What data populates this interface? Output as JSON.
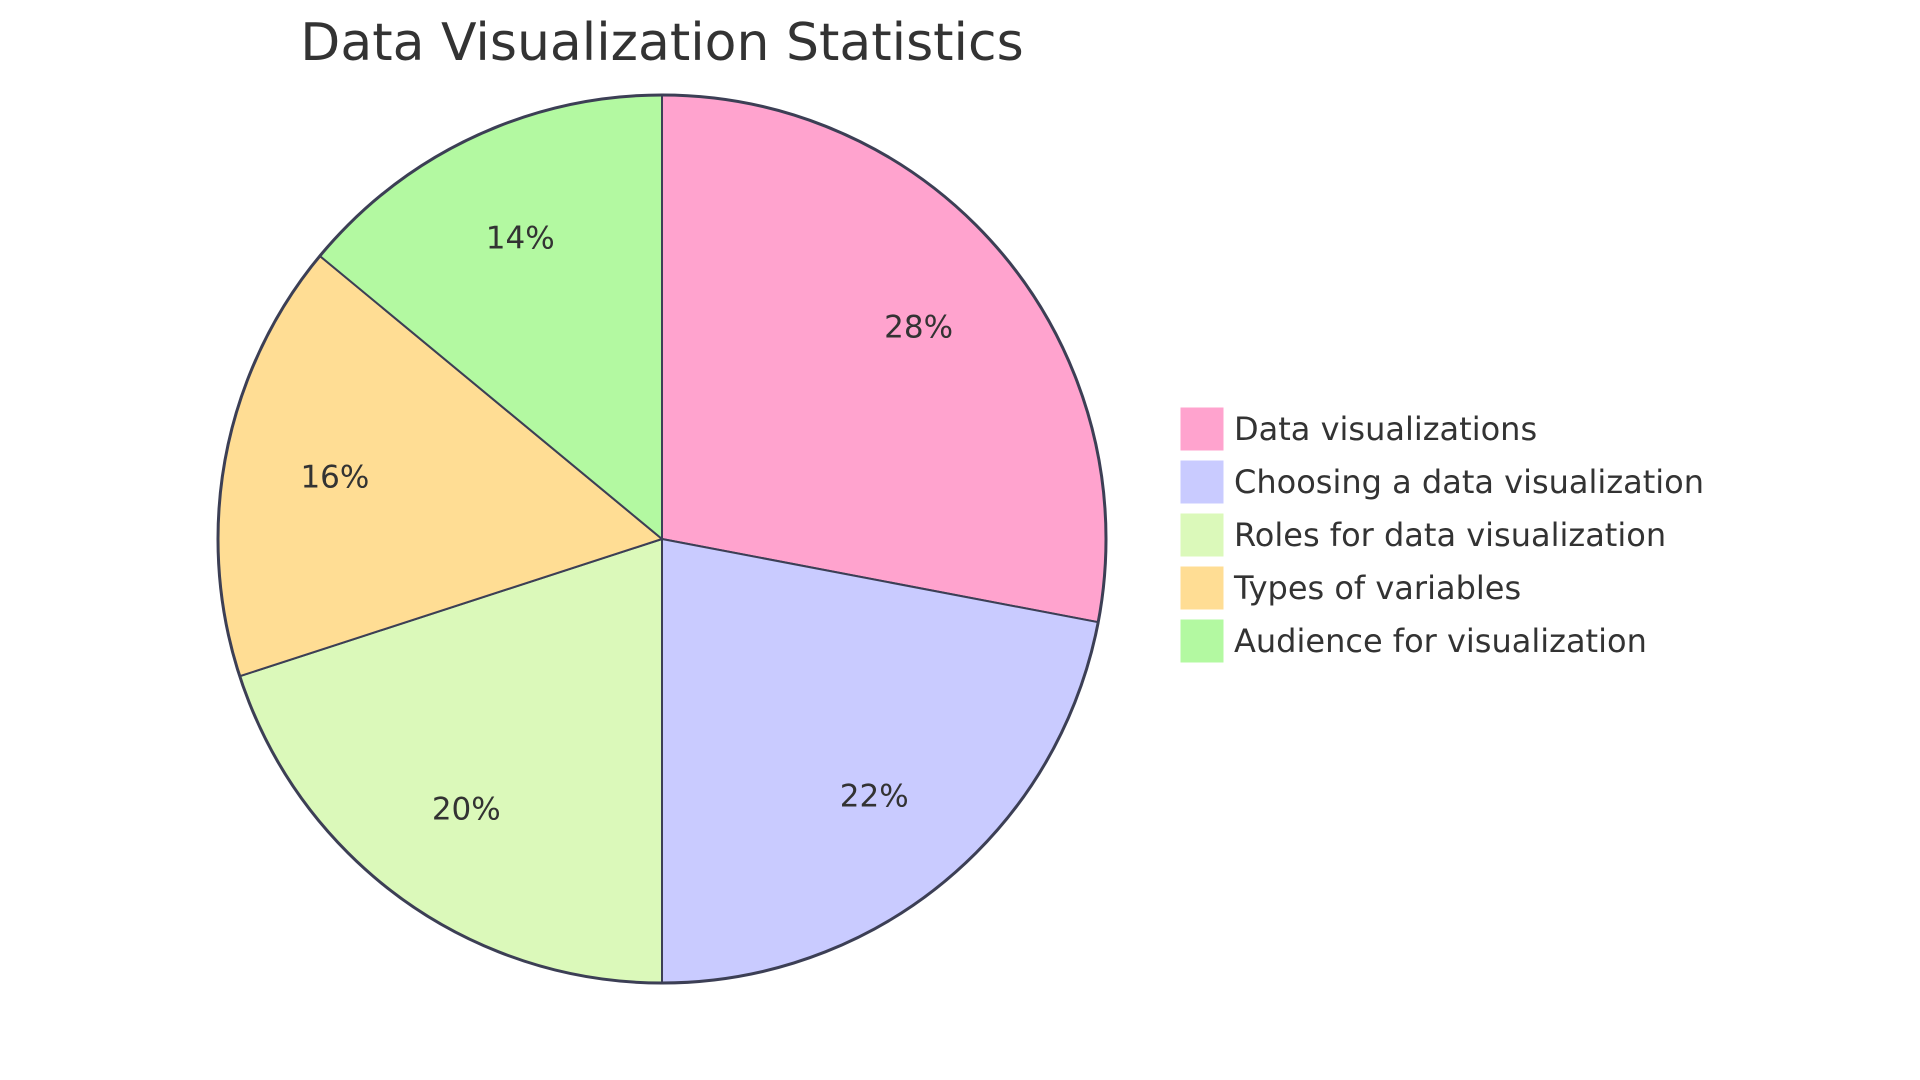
{
  "chart_data": {
    "type": "pie",
    "title": "Data Visualization Statistics",
    "categories": [
      "Data visualizations",
      "Choosing a data visualization",
      "Roles for data visualization",
      "Types of variables",
      "Audience for visualization"
    ],
    "values": [
      28,
      22,
      20,
      16,
      14
    ],
    "labels": [
      "28%",
      "22%",
      "20%",
      "16%",
      "14%"
    ],
    "colors": [
      "#FFA3CE",
      "#C9CBFF",
      "#DBF9BA",
      "#FFDD94",
      "#B3F9A1"
    ],
    "stroke_color": "#3C3F55",
    "legend_placement": "right",
    "start": "top",
    "direction": "clockwise"
  }
}
